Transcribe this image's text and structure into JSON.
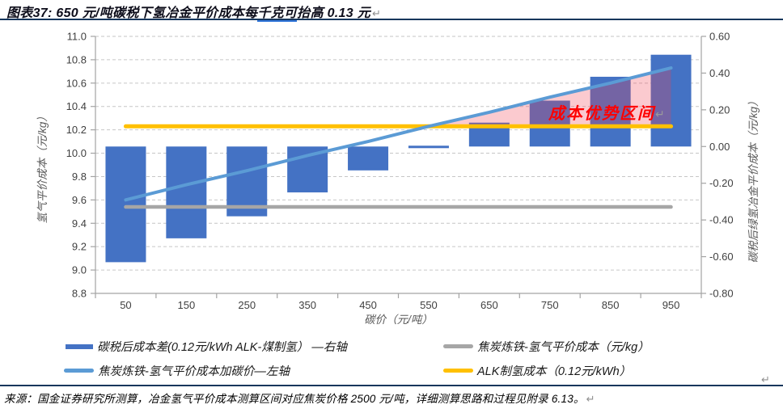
{
  "header": {
    "title_prefix": "图表37: 650 元/吨碳税下氢冶金平价成本每",
    "title_underlined": "千克可",
    "title_suffix": "抬高 0.13 元",
    "return_mark": "↵"
  },
  "legend": {
    "items": [
      {
        "label": "碳税后成本差(0.12元/kWh ALK-煤制氢） —右轴",
        "color": "#4472C4",
        "shape": "bar"
      },
      {
        "label": "焦炭炼铁-氢气平价成本加碳价—左轴",
        "color": "#5B9BD5",
        "shape": "line"
      },
      {
        "label": "焦炭炼铁-氢气平价成本（元/kg）",
        "color": "#A6A6A6",
        "shape": "line"
      },
      {
        "label": "ALK制氢成本（0.12元/kWh）",
        "color": "#FFC000",
        "shape": "line"
      }
    ],
    "return_mark": "↵"
  },
  "footer": {
    "source": "来源：国金证券研究所测算，冶金氢气平价成本测算区间对应焦炭价格 2500 元/吨，详细测算思路和过程见附录 6.13。",
    "return_mark": "↵"
  },
  "chart_data": {
    "type": "bar+line combo, dual axis",
    "categories": [
      50,
      150,
      250,
      350,
      450,
      550,
      650,
      750,
      850,
      950
    ],
    "xlabel": "碳价（元/吨）",
    "x_tick_labels": [
      "50",
      "150",
      "250",
      "350",
      "450",
      "550",
      "650",
      "750",
      "850",
      "950"
    ],
    "left_axis": {
      "label": "氢气平价成本（元/kg）",
      "min": 8.8,
      "max": 11.0,
      "step": 0.2,
      "tick_labels": [
        "8.8",
        "9.0",
        "9.2",
        "9.4",
        "9.6",
        "9.8",
        "10.0",
        "10.2",
        "10.4",
        "10.6",
        "10.8",
        "11.0"
      ]
    },
    "right_axis": {
      "label": "碳税后绿氢冶金平价成本（元/kg）",
      "min": -0.8,
      "max": 0.6,
      "step": 0.2,
      "tick_labels": [
        "-0.80",
        "-0.60",
        "-0.40",
        "-0.20",
        "0.00",
        "0.20",
        "0.40",
        "0.60"
      ]
    },
    "series": [
      {
        "name": "碳税后成本差(0.12元/kWh ALK-煤制氢） —右轴",
        "type": "bar",
        "axis": "right",
        "color": "#4472C4",
        "values": [
          -0.63,
          -0.5,
          -0.38,
          -0.25,
          -0.13,
          0.0,
          0.13,
          0.25,
          0.38,
          0.5
        ]
      },
      {
        "name": "焦炭炼铁-氢气平价成本加碳价—左轴",
        "type": "line",
        "axis": "left",
        "color": "#5B9BD5",
        "width": 4,
        "values": [
          9.6,
          9.73,
          9.85,
          9.98,
          10.1,
          10.23,
          10.35,
          10.48,
          10.6,
          10.73
        ]
      },
      {
        "name": "焦炭炼铁-氢气平价成本（元/kg）",
        "type": "line",
        "axis": "left",
        "color": "#A6A6A6",
        "width": 4.5,
        "values": [
          9.54,
          9.54,
          9.54,
          9.54,
          9.54,
          9.54,
          9.54,
          9.54,
          9.54,
          9.54
        ]
      },
      {
        "name": "ALK制氢成本（0.12元/kWh）",
        "type": "line",
        "axis": "left",
        "color": "#FFC000",
        "width": 5,
        "values": [
          10.23,
          10.23,
          10.23,
          10.23,
          10.23,
          10.23,
          10.23,
          10.23,
          10.23,
          10.23
        ]
      }
    ],
    "highlight_region": {
      "label": "成本优势区间",
      "label_color": "#FE0000",
      "fill": "rgba(242,65,84,0.28)",
      "from_category": 550,
      "to_category": 950,
      "between": [
        "焦炭炼铁-氢气平价成本加碳价—左轴",
        "ALK制氢成本（0.12元/kWh）"
      ],
      "return_mark": "↵"
    },
    "grid": "horizontal dashed",
    "legend_position": "bottom"
  }
}
